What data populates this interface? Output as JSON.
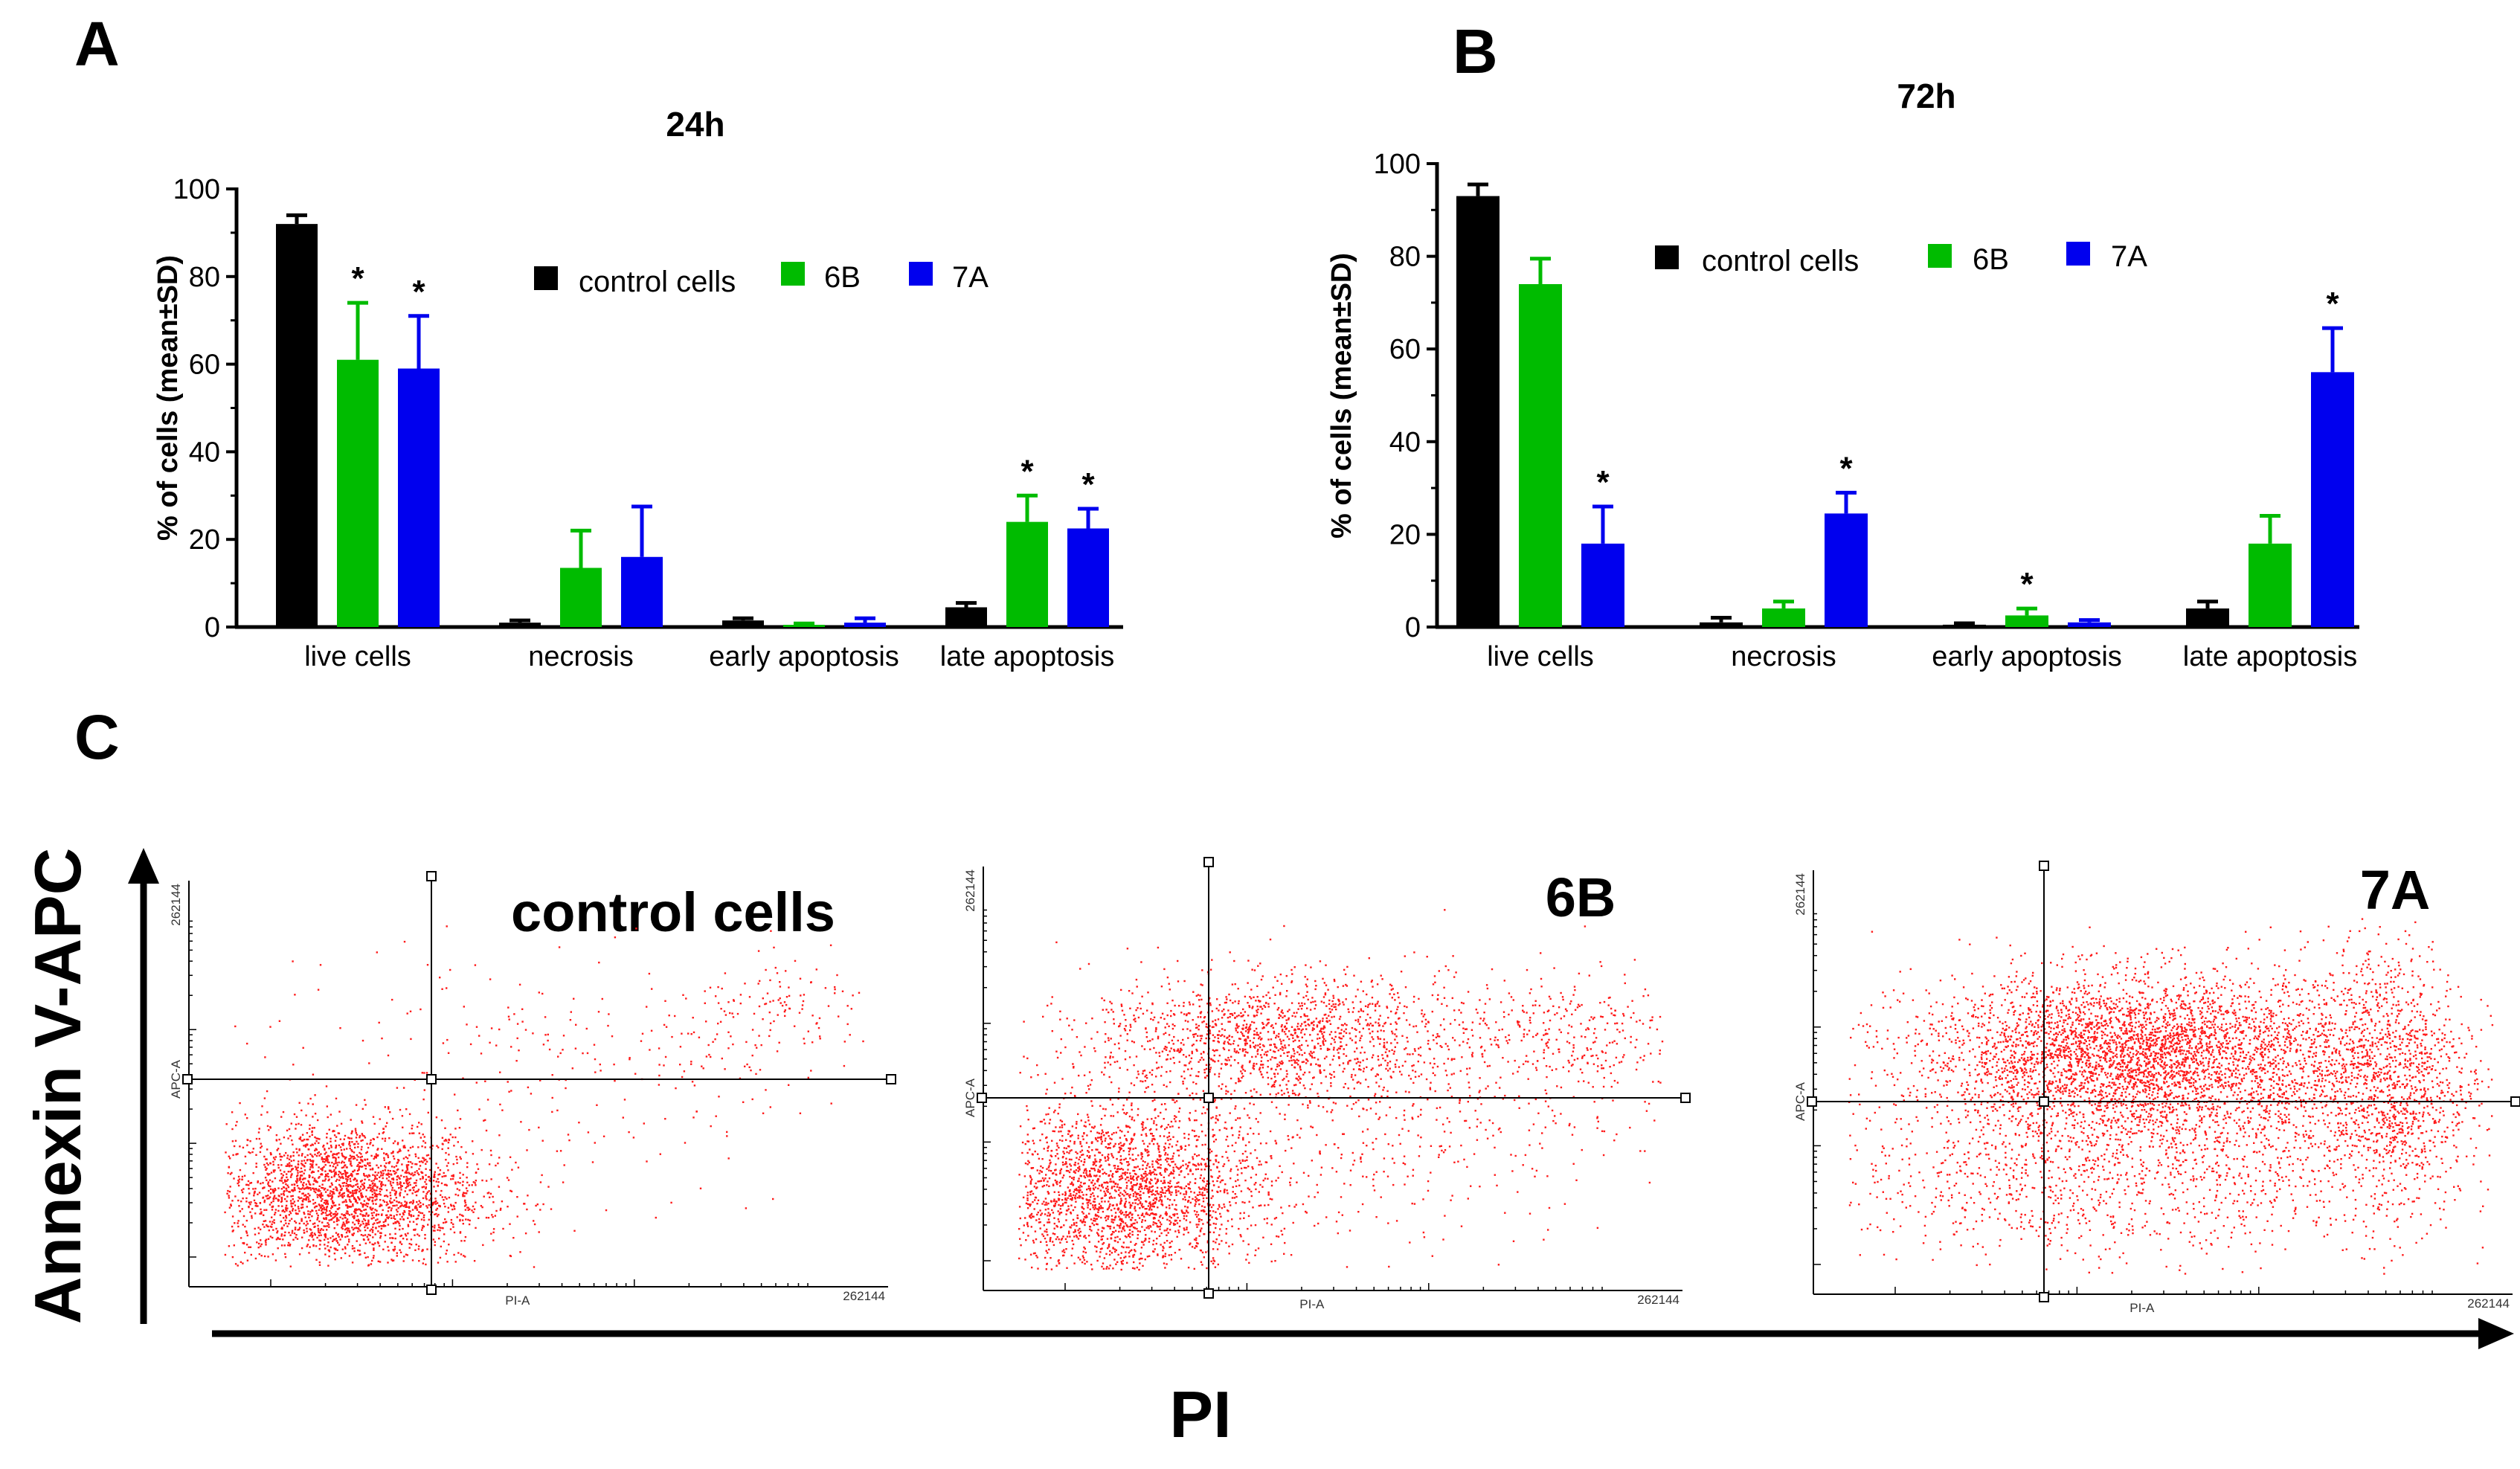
{
  "colors": {
    "control": "#000000",
    "6B": "#00bb00",
    "7A": "#0000ee",
    "dots": "#ff1a1a",
    "axes": "#000000"
  },
  "panels": {
    "A": "A",
    "B": "B",
    "C": "C"
  },
  "chart_data": [
    {
      "type": "bar",
      "panel": "A",
      "title": "24h",
      "xlabel": "",
      "ylabel": "% of cells (mean±SD)",
      "ylim": [
        0,
        100
      ],
      "yticks": [
        "0",
        "20",
        "40",
        "60",
        "80",
        "100"
      ],
      "categories": [
        "live cells",
        "necrosis",
        "early apoptosis",
        "late apoptosis"
      ],
      "legend": [
        "control cells",
        "6B",
        "7A"
      ],
      "series": [
        {
          "name": "control cells",
          "color": "#000000",
          "values": [
            92,
            1,
            1.5,
            4.5
          ],
          "errors": [
            2,
            0.5,
            0.5,
            1
          ]
        },
        {
          "name": "6B",
          "color": "#00bb00",
          "values": [
            61,
            13.5,
            0.5,
            24
          ],
          "errors": [
            13,
            8.5,
            0.3,
            6
          ]
        },
        {
          "name": "7A",
          "color": "#0000ee",
          "values": [
            59,
            16,
            1,
            22.5
          ],
          "errors": [
            12,
            11.5,
            1,
            4.5
          ]
        }
      ],
      "significance": [
        {
          "series": 1,
          "category": 0,
          "label": "*"
        },
        {
          "series": 2,
          "category": 0,
          "label": "*"
        },
        {
          "series": 1,
          "category": 3,
          "label": "*"
        },
        {
          "series": 2,
          "category": 3,
          "label": "*"
        }
      ]
    },
    {
      "type": "bar",
      "panel": "B",
      "title": "72h",
      "xlabel": "",
      "ylabel": "% of cells (mean±SD)",
      "ylim": [
        0,
        100
      ],
      "yticks": [
        "0",
        "20",
        "40",
        "60",
        "80",
        "100"
      ],
      "categories": [
        "live cells",
        "necrosis",
        "early apoptosis",
        "late apoptosis"
      ],
      "legend": [
        "control cells",
        "6B",
        "7A"
      ],
      "series": [
        {
          "name": "control cells",
          "color": "#000000",
          "values": [
            93,
            1,
            0.5,
            4
          ],
          "errors": [
            2.5,
            1,
            0.3,
            1.5
          ]
        },
        {
          "name": "6B",
          "color": "#00bb00",
          "values": [
            74,
            4,
            2.5,
            18
          ],
          "errors": [
            5.5,
            1.5,
            1.5,
            6
          ]
        },
        {
          "name": "7A",
          "color": "#0000ee",
          "values": [
            18,
            24.5,
            1,
            55
          ],
          "errors": [
            8,
            4.5,
            0.5,
            9.5
          ]
        }
      ],
      "significance": [
        {
          "series": 2,
          "category": 0,
          "label": "*"
        },
        {
          "series": 2,
          "category": 1,
          "label": "*"
        },
        {
          "series": 1,
          "category": 2,
          "label": "*"
        },
        {
          "series": 2,
          "category": 3,
          "label": "*"
        }
      ]
    },
    {
      "type": "scatter",
      "panel": "C",
      "xlabel": "PI",
      "ylabel": "Annexin V-APC",
      "plots": [
        {
          "title": "control cells",
          "x_axis_label": "PI-A",
          "y_axis_label": "APC-A",
          "x_max_label": "262144",
          "y_max_label": "262144",
          "clusters": [
            {
              "cx": 0.22,
              "cy": 0.23,
              "sx": 0.1,
              "sy": 0.09,
              "count": 2600
            },
            {
              "cx": 0.47,
              "cy": 0.5,
              "sx": 0.22,
              "sy": 0.22,
              "count": 170
            },
            {
              "cx": 0.86,
              "cy": 0.68,
              "sx": 0.07,
              "sy": 0.06,
              "count": 110
            },
            {
              "cx": 0.6,
              "cy": 0.58,
              "sx": 0.18,
              "sy": 0.1,
              "count": 120
            }
          ]
        },
        {
          "title": "6B",
          "x_axis_label": "PI-A",
          "y_axis_label": "APC-A",
          "x_max_label": "262144",
          "y_max_label": "262144",
          "clusters": [
            {
              "cx": 0.2,
              "cy": 0.23,
              "sx": 0.1,
              "sy": 0.1,
              "count": 2400
            },
            {
              "cx": 0.41,
              "cy": 0.6,
              "sx": 0.13,
              "sy": 0.07,
              "count": 1300
            },
            {
              "cx": 0.53,
              "cy": 0.44,
              "sx": 0.2,
              "sy": 0.17,
              "count": 700
            },
            {
              "cx": 0.83,
              "cy": 0.61,
              "sx": 0.08,
              "sy": 0.07,
              "count": 280
            }
          ]
        },
        {
          "title": "7A",
          "x_axis_label": "PI-A",
          "y_axis_label": "APC-A",
          "x_max_label": "262144",
          "y_max_label": "262144",
          "clusters": [
            {
              "cx": 0.46,
              "cy": 0.57,
              "sx": 0.16,
              "sy": 0.09,
              "count": 3600
            },
            {
              "cx": 0.33,
              "cy": 0.28,
              "sx": 0.18,
              "sy": 0.1,
              "count": 750
            },
            {
              "cx": 0.82,
              "cy": 0.52,
              "sx": 0.06,
              "sy": 0.16,
              "count": 1100
            },
            {
              "cx": 0.6,
              "cy": 0.4,
              "sx": 0.2,
              "sy": 0.16,
              "count": 1300
            }
          ]
        }
      ]
    }
  ]
}
